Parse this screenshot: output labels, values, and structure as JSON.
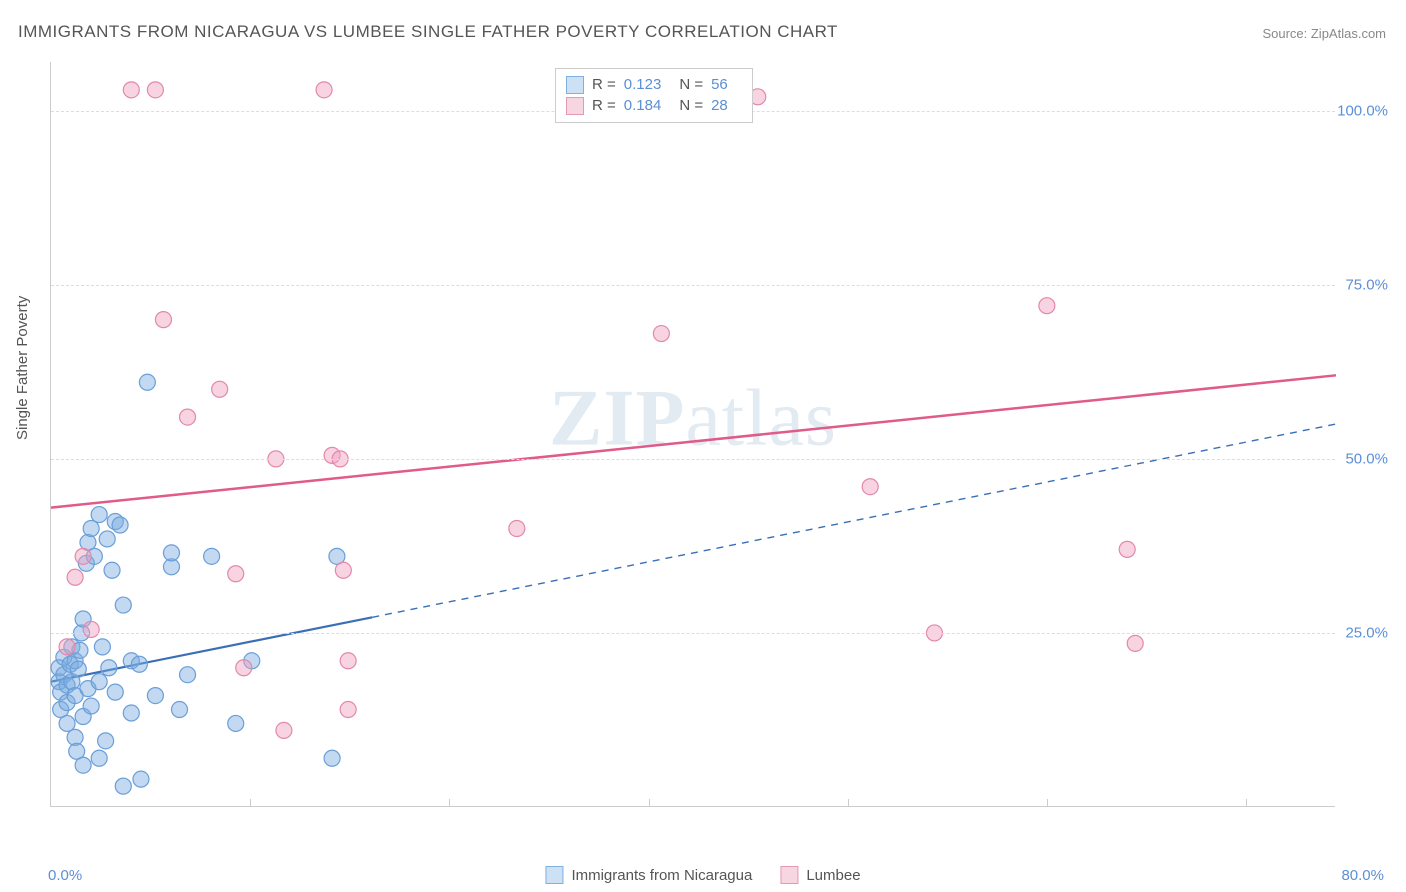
{
  "title": "IMMIGRANTS FROM NICARAGUA VS LUMBEE SINGLE FATHER POVERTY CORRELATION CHART",
  "source": "Source: ZipAtlas.com",
  "ylabel": "Single Father Poverty",
  "watermark_a": "ZIP",
  "watermark_b": "atlas",
  "chart": {
    "type": "scatter",
    "xlim": [
      0,
      80
    ],
    "ylim": [
      0,
      107
    ],
    "xtick_min_label": "0.0%",
    "xtick_max_label": "80.0%",
    "yticks": [
      25,
      50,
      75,
      100
    ],
    "ytick_labels": [
      "25.0%",
      "50.0%",
      "75.0%",
      "100.0%"
    ],
    "xticks_minor": [
      12.4,
      24.8,
      37.2,
      49.6,
      62.0,
      74.4
    ],
    "background_color": "#ffffff",
    "grid_color": "#dddddd",
    "axis_color": "#cccccc",
    "tick_label_color": "#5b8fd6",
    "marker_radius": 8,
    "marker_stroke_width": 1.2,
    "series": [
      {
        "id": "nicaragua",
        "label": "Immigrants from Nicaragua",
        "fill": "rgba(120, 170, 225, 0.45)",
        "stroke": "#6a9ed8",
        "swatch_fill": "#cde1f5",
        "swatch_border": "#7fb0e0",
        "R": "0.123",
        "N": "56",
        "trend": {
          "x1": 0,
          "y1": 18,
          "x2": 80,
          "y2": 55,
          "solid_until_x": 20,
          "color": "#3a6fb7",
          "width": 2.2
        },
        "points": [
          [
            0.5,
            18
          ],
          [
            0.5,
            20
          ],
          [
            0.6,
            16.5
          ],
          [
            0.6,
            14
          ],
          [
            0.8,
            19
          ],
          [
            0.8,
            21.5
          ],
          [
            1.0,
            17.5
          ],
          [
            1.0,
            15
          ],
          [
            1.0,
            12
          ],
          [
            1.2,
            20.5
          ],
          [
            1.3,
            18
          ],
          [
            1.3,
            23
          ],
          [
            1.5,
            21
          ],
          [
            1.5,
            16
          ],
          [
            1.5,
            10
          ],
          [
            1.6,
            8
          ],
          [
            1.7,
            19.8
          ],
          [
            1.8,
            22.5
          ],
          [
            1.9,
            25
          ],
          [
            2.0,
            27
          ],
          [
            2.0,
            13
          ],
          [
            2.0,
            6
          ],
          [
            2.2,
            35
          ],
          [
            2.3,
            38
          ],
          [
            2.3,
            17
          ],
          [
            2.5,
            40
          ],
          [
            2.5,
            14.5
          ],
          [
            2.7,
            36
          ],
          [
            3.0,
            42
          ],
          [
            3.0,
            18
          ],
          [
            3.0,
            7
          ],
          [
            3.2,
            23
          ],
          [
            3.4,
            9.5
          ],
          [
            3.5,
            38.5
          ],
          [
            3.6,
            20
          ],
          [
            3.8,
            34
          ],
          [
            4.0,
            41
          ],
          [
            4.0,
            16.5
          ],
          [
            4.3,
            40.5
          ],
          [
            4.5,
            29
          ],
          [
            4.5,
            3
          ],
          [
            5.0,
            13.5
          ],
          [
            5.0,
            21
          ],
          [
            5.5,
            20.5
          ],
          [
            5.6,
            4
          ],
          [
            6.0,
            61
          ],
          [
            6.5,
            16
          ],
          [
            7.5,
            34.5
          ],
          [
            7.5,
            36.5
          ],
          [
            8.0,
            14
          ],
          [
            8.5,
            19
          ],
          [
            10.0,
            36
          ],
          [
            11.5,
            12
          ],
          [
            12.5,
            21
          ],
          [
            17.5,
            7
          ],
          [
            17.8,
            36
          ]
        ]
      },
      {
        "id": "lumbee",
        "label": "Lumbee",
        "fill": "rgba(240, 160, 190, 0.45)",
        "stroke": "#e388a8",
        "swatch_fill": "#f7d6e2",
        "swatch_border": "#e49ab6",
        "R": "0.184",
        "N": "28",
        "trend": {
          "x1": 0,
          "y1": 43,
          "x2": 80,
          "y2": 62,
          "solid_until_x": 80,
          "color": "#e05a8a",
          "width": 2.5
        },
        "points": [
          [
            1.0,
            23
          ],
          [
            1.5,
            33
          ],
          [
            2.0,
            36
          ],
          [
            2.5,
            25.5
          ],
          [
            5.0,
            103
          ],
          [
            6.5,
            103
          ],
          [
            7.0,
            70
          ],
          [
            8.5,
            56
          ],
          [
            10.5,
            60
          ],
          [
            11.5,
            33.5
          ],
          [
            12.0,
            20
          ],
          [
            14.0,
            50
          ],
          [
            14.5,
            11
          ],
          [
            17.0,
            103
          ],
          [
            17.5,
            50.5
          ],
          [
            18.0,
            50
          ],
          [
            18.2,
            34
          ],
          [
            18.5,
            14
          ],
          [
            18.5,
            21
          ],
          [
            29.0,
            40
          ],
          [
            38.0,
            68
          ],
          [
            40.5,
            103
          ],
          [
            51.0,
            46
          ],
          [
            55.0,
            25
          ],
          [
            62.0,
            72
          ],
          [
            67.0,
            37
          ],
          [
            67.5,
            23.5
          ],
          [
            44.0,
            102
          ]
        ]
      }
    ]
  },
  "stats_legend": {
    "R_label": "R =",
    "N_label": "N ="
  },
  "bottom_legend_labels": [
    "Immigrants from Nicaragua",
    "Lumbee"
  ]
}
